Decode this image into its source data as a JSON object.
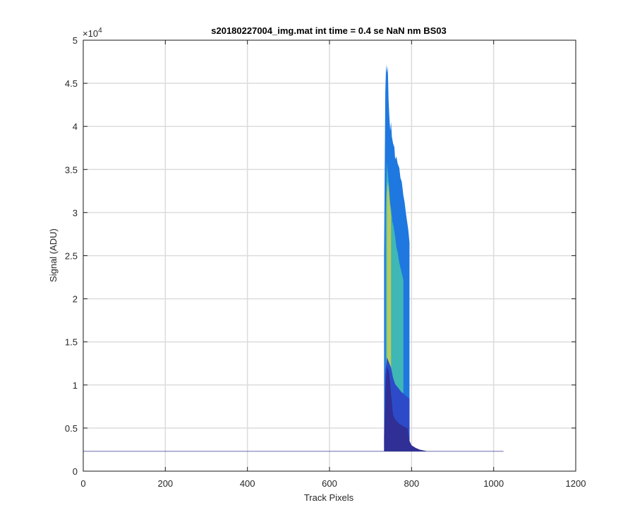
{
  "chart_data": {
    "type": "area",
    "title": "s20180227004_img.mat int time = 0.4 se  NaN nm BS03",
    "xlabel": "Track Pixels",
    "ylabel": "Signal (ADU)",
    "xlim": [
      0,
      1200
    ],
    "ylim": [
      0,
      50000
    ],
    "xticks": [
      0,
      200,
      400,
      600,
      800,
      1000,
      1200
    ],
    "xtick_labels": [
      "0",
      "200",
      "400",
      "600",
      "800",
      "1000",
      "1200"
    ],
    "yticks": [
      0,
      5000,
      10000,
      15000,
      20000,
      25000,
      30000,
      35000,
      40000,
      45000,
      50000
    ],
    "ytick_labels": [
      "0",
      "0.5",
      "1",
      "1.5",
      "2",
      "2.5",
      "3",
      "3.5",
      "4",
      "4.5",
      "5"
    ],
    "y_exponent": "×10",
    "y_exponent_power": "4",
    "grid": true,
    "baseline": 2300,
    "baseline_x_range": [
      0,
      1024
    ],
    "series": [
      {
        "color": "#1f78e0",
        "x": [
          733,
          736,
          738,
          740,
          742,
          744,
          746,
          748,
          750,
          752,
          755,
          758,
          760,
          763,
          766,
          770,
          773,
          776,
          780,
          783,
          786,
          789,
          792,
          795
        ],
        "y": [
          25000,
          44000,
          47200,
          46200,
          47000,
          43000,
          41000,
          39500,
          40500,
          38800,
          38000,
          37600,
          36200,
          36500,
          35700,
          35200,
          34000,
          33600,
          32000,
          31200,
          30000,
          29000,
          28000,
          26500
        ]
      },
      {
        "color": "#3fb7b4",
        "x": [
          737,
          740,
          742,
          745,
          748,
          750,
          753,
          756,
          760,
          763,
          766,
          770,
          773,
          776,
          780
        ],
        "y": [
          30000,
          35800,
          34600,
          33000,
          31000,
          30500,
          29000,
          28400,
          27200,
          26000,
          25400,
          24200,
          23600,
          23000,
          22200
        ]
      },
      {
        "color": "#b9cc5e",
        "x": [
          740,
          742,
          744,
          746,
          748,
          750
        ],
        "y": [
          32000,
          33600,
          33000,
          31600,
          30500,
          29600
        ]
      },
      {
        "color": "#2d4bc8",
        "x": [
          735,
          740,
          745,
          750,
          755,
          760,
          765,
          770,
          775,
          780,
          785,
          790,
          795
        ],
        "y": [
          11000,
          13200,
          12600,
          12000,
          10800,
          10100,
          9800,
          9500,
          9200,
          9000,
          8800,
          8600,
          8400
        ]
      },
      {
        "color": "#2f2f95",
        "x": [
          733,
          736,
          740,
          745,
          750,
          755,
          760,
          770,
          780,
          790,
          795,
          800,
          810,
          820,
          835
        ],
        "y": [
          4000,
          9500,
          12200,
          11500,
          9000,
          6500,
          6000,
          5500,
          5200,
          5000,
          3500,
          3000,
          2700,
          2500,
          2350
        ]
      }
    ]
  }
}
